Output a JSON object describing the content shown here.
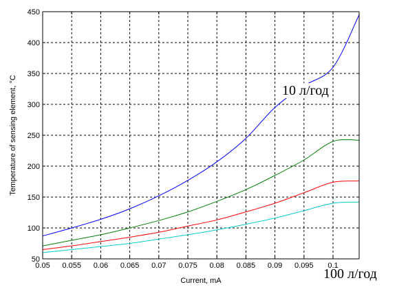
{
  "chart_data": {
    "type": "line",
    "xlabel": "Current, mA",
    "ylabel": "Temperature of sensing element, °C",
    "xlim": [
      0.05,
      0.1045
    ],
    "ylim": [
      50,
      450
    ],
    "xticks": [
      0.05,
      0.055,
      0.06,
      0.065,
      0.07,
      0.075,
      0.08,
      0.085,
      0.09,
      0.095,
      0.1
    ],
    "xtick_labels": [
      "0.05",
      "0.055",
      "0.06",
      "0.065",
      "0.07",
      "0.075",
      "0.08",
      "0.085",
      "0.09",
      "0.095",
      "0.1"
    ],
    "yticks": [
      50,
      100,
      150,
      200,
      250,
      300,
      350,
      400,
      450
    ],
    "grid": true,
    "legend": "none",
    "series": [
      {
        "color": "#0000ff",
        "x": [
          0.05,
          0.055,
          0.06,
          0.065,
          0.07,
          0.075,
          0.08,
          0.085,
          0.09,
          0.095,
          0.1,
          0.1045
        ],
        "y": [
          87,
          100,
          114,
          131,
          152,
          177,
          207,
          245,
          295,
          330,
          360,
          445
        ]
      },
      {
        "color": "#008000",
        "x": [
          0.05,
          0.055,
          0.06,
          0.065,
          0.07,
          0.075,
          0.08,
          0.085,
          0.09,
          0.095,
          0.1,
          0.1045
        ],
        "y": [
          71,
          80,
          89,
          100,
          112,
          126,
          143,
          162,
          185,
          210,
          240,
          242
        ]
      },
      {
        "color": "#ff0000",
        "x": [
          0.05,
          0.055,
          0.06,
          0.065,
          0.07,
          0.075,
          0.08,
          0.085,
          0.09,
          0.095,
          0.1,
          0.1045
        ],
        "y": [
          65,
          71,
          78,
          85,
          93,
          103,
          113,
          126,
          140,
          157,
          174,
          176
        ]
      },
      {
        "color": "#00cccc",
        "x": [
          0.05,
          0.055,
          0.06,
          0.065,
          0.07,
          0.075,
          0.08,
          0.085,
          0.09,
          0.095,
          0.1,
          0.1045
        ],
        "y": [
          60,
          65,
          70,
          75,
          82,
          89,
          97,
          106,
          116,
          128,
          140,
          142
        ]
      }
    ],
    "annotations": [
      {
        "text": "10 л/год",
        "near": "upper-right, next to blue curve"
      },
      {
        "text": "100 л/год",
        "near": "below bottom-right corner"
      }
    ]
  }
}
